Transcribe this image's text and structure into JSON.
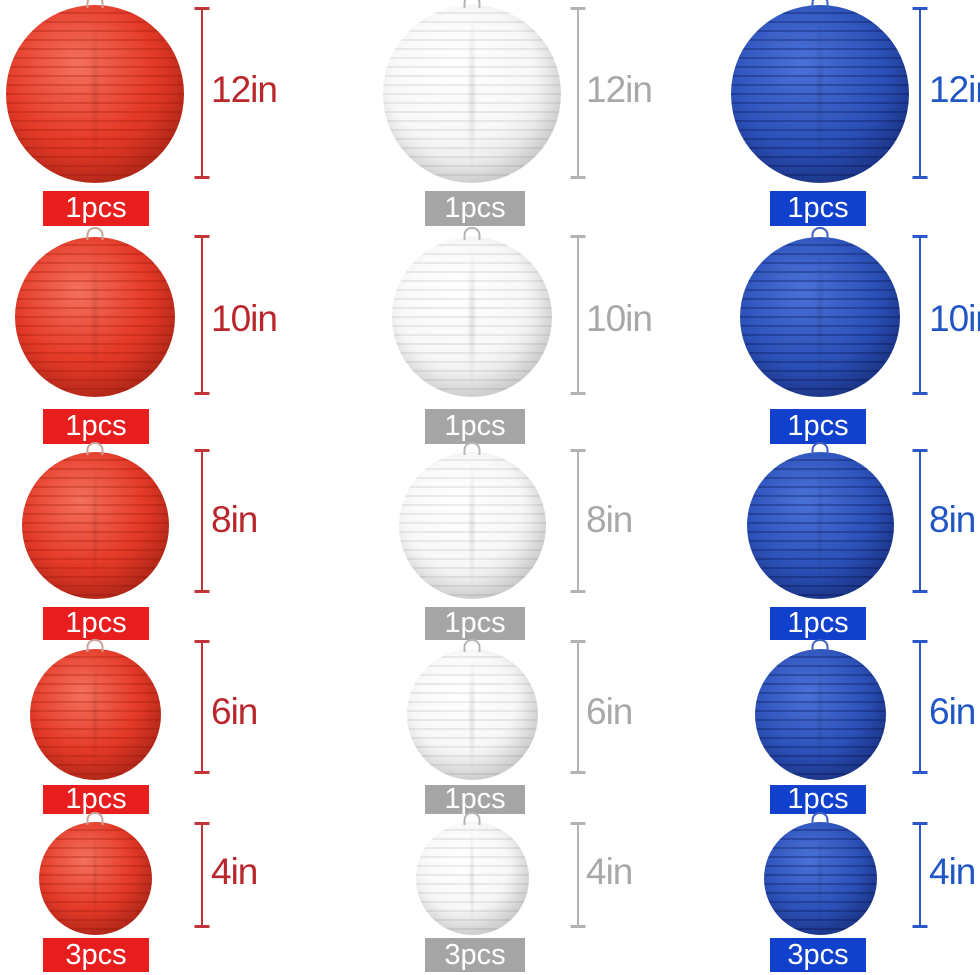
{
  "product": {
    "name": "red-white-blue-paper-lantern-set-size-chart"
  },
  "rows": [
    {
      "size": "12in",
      "pcs": [
        "1pcs",
        "1pcs",
        "1pcs"
      ]
    },
    {
      "size": "10in",
      "pcs": [
        "1pcs",
        "1pcs",
        "1pcs"
      ]
    },
    {
      "size": "8in",
      "pcs": [
        "1pcs",
        "1pcs",
        "1pcs"
      ]
    },
    {
      "size": "6in",
      "pcs": [
        "1pcs",
        "1pcs",
        "1pcs"
      ]
    },
    {
      "size": "4in",
      "pcs": [
        "3pcs",
        "3pcs",
        "3pcs"
      ]
    }
  ],
  "columns": [
    {
      "id": "red",
      "label_color": "#b9262b",
      "line_color": "#c23436",
      "badge_bg": "#e81d1d",
      "badge_text_color": "#ffffff",
      "lantern": {
        "base": "#e53a28",
        "light": "#f4715d",
        "dark": "#a92112",
        "rib": "rgba(150,20,8,0.28)",
        "loop": "#c9a29a"
      }
    },
    {
      "id": "white",
      "label_color": "#a8a8a8",
      "line_color": "#b3b3b3",
      "badge_bg": "#a5a5a5",
      "badge_text_color": "#ffffff",
      "lantern": {
        "base": "#f7f7f7",
        "light": "#ffffff",
        "dark": "#cfcfcf",
        "rib": "rgba(0,0,0,0.07)",
        "loop": "#b5b5b5"
      }
    },
    {
      "id": "blue",
      "label_color": "#2156c6",
      "line_color": "#2c57c9",
      "badge_bg": "#1140cd",
      "badge_text_color": "#ffffff",
      "lantern": {
        "base": "#2d53bb",
        "light": "#4a71d8",
        "dark": "#14297a",
        "rib": "rgba(6,12,70,0.30)",
        "loop": "#3b5fc4"
      }
    }
  ]
}
